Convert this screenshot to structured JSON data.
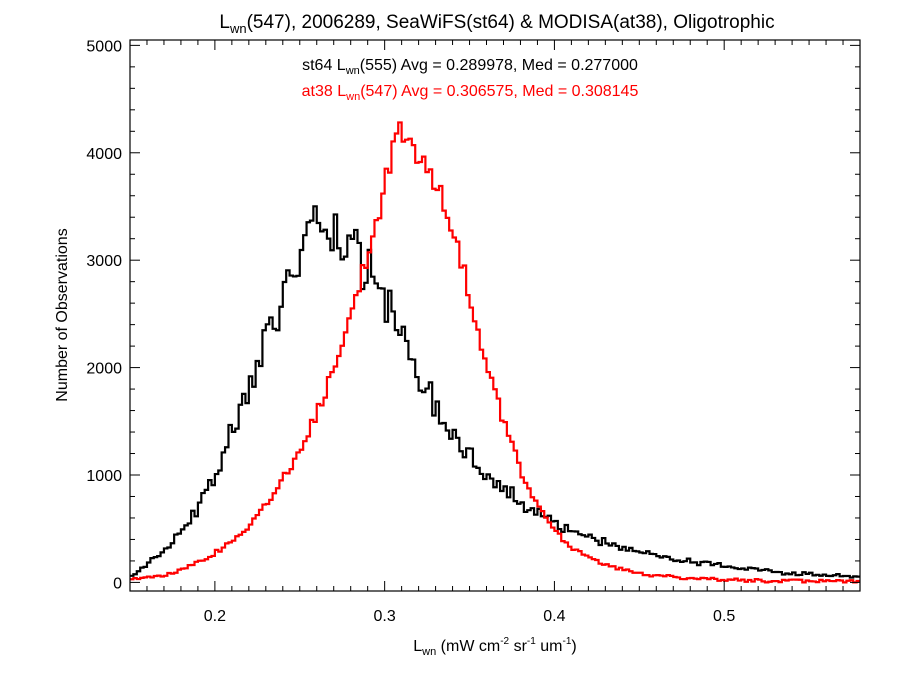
{
  "chart_data": {
    "type": "histogram",
    "title": {
      "base": "L",
      "sub": "wn",
      "rest": "(547), 2006289, SeaWiFS(st64) & MODISA(at38), Oligotrophic"
    },
    "xlabel": {
      "base": "L",
      "sub": "wn",
      "rest1": " (mW cm",
      "sup1": "-2",
      "rest2": " sr",
      "sup2": "-1",
      "rest3": " um",
      "sup3": "-1",
      "rest4": ")"
    },
    "ylabel": "Number of Observations",
    "xlim": [
      0.15,
      0.58
    ],
    "ylim": [
      -80,
      5050
    ],
    "x_ticks": [
      "0.2",
      "0.3",
      "0.4",
      "0.5"
    ],
    "y_ticks": [
      "0",
      "1000",
      "2000",
      "3000",
      "4000",
      "5000"
    ],
    "bin_width": 0.002,
    "series": [
      {
        "name": "st64",
        "color": "#000000",
        "stats": {
          "pre": "st64 L",
          "sub": "wn",
          "post": "(555) Avg = 0.289978, Med = 0.277000"
        },
        "points": [
          [
            0.15,
            60
          ],
          [
            0.16,
            170
          ],
          [
            0.17,
            300
          ],
          [
            0.18,
            470
          ],
          [
            0.19,
            700
          ],
          [
            0.2,
            1000
          ],
          [
            0.21,
            1390
          ],
          [
            0.22,
            1800
          ],
          [
            0.23,
            2250
          ],
          [
            0.24,
            2700
          ],
          [
            0.25,
            3050
          ],
          [
            0.255,
            3200
          ],
          [
            0.26,
            3220
          ],
          [
            0.27,
            3180
          ],
          [
            0.28,
            3100
          ],
          [
            0.29,
            2900
          ],
          [
            0.3,
            2620
          ],
          [
            0.31,
            2280
          ],
          [
            0.32,
            1950
          ],
          [
            0.33,
            1650
          ],
          [
            0.34,
            1400
          ],
          [
            0.35,
            1200
          ],
          [
            0.36,
            1030
          ],
          [
            0.37,
            880
          ],
          [
            0.38,
            750
          ],
          [
            0.39,
            640
          ],
          [
            0.4,
            550
          ],
          [
            0.41,
            480
          ],
          [
            0.42,
            420
          ],
          [
            0.43,
            370
          ],
          [
            0.44,
            320
          ],
          [
            0.45,
            280
          ],
          [
            0.46,
            250
          ],
          [
            0.47,
            220
          ],
          [
            0.48,
            190
          ],
          [
            0.49,
            170
          ],
          [
            0.5,
            150
          ],
          [
            0.52,
            115
          ],
          [
            0.54,
            85
          ],
          [
            0.56,
            65
          ],
          [
            0.58,
            50
          ]
        ]
      },
      {
        "name": "at38",
        "color": "#ff0000",
        "stats": {
          "pre": "at38 L",
          "sub": "wn",
          "post": "(547) Avg = 0.306575, Med = 0.308145"
        },
        "points": [
          [
            0.15,
            20
          ],
          [
            0.16,
            40
          ],
          [
            0.17,
            70
          ],
          [
            0.18,
            115
          ],
          [
            0.19,
            180
          ],
          [
            0.2,
            270
          ],
          [
            0.21,
            380
          ],
          [
            0.22,
            520
          ],
          [
            0.23,
            720
          ],
          [
            0.24,
            950
          ],
          [
            0.25,
            1230
          ],
          [
            0.26,
            1550
          ],
          [
            0.27,
            2000
          ],
          [
            0.28,
            2500
          ],
          [
            0.29,
            3100
          ],
          [
            0.3,
            3700
          ],
          [
            0.305,
            4050
          ],
          [
            0.31,
            4200
          ],
          [
            0.315,
            4150
          ],
          [
            0.32,
            4000
          ],
          [
            0.33,
            3750
          ],
          [
            0.34,
            3300
          ],
          [
            0.35,
            2700
          ],
          [
            0.36,
            2050
          ],
          [
            0.37,
            1500
          ],
          [
            0.38,
            1050
          ],
          [
            0.39,
            720
          ],
          [
            0.4,
            480
          ],
          [
            0.41,
            330
          ],
          [
            0.42,
            230
          ],
          [
            0.43,
            160
          ],
          [
            0.44,
            115
          ],
          [
            0.45,
            85
          ],
          [
            0.46,
            65
          ],
          [
            0.48,
            40
          ],
          [
            0.5,
            25
          ],
          [
            0.52,
            16
          ],
          [
            0.55,
            10
          ],
          [
            0.58,
            6
          ]
        ]
      }
    ]
  }
}
